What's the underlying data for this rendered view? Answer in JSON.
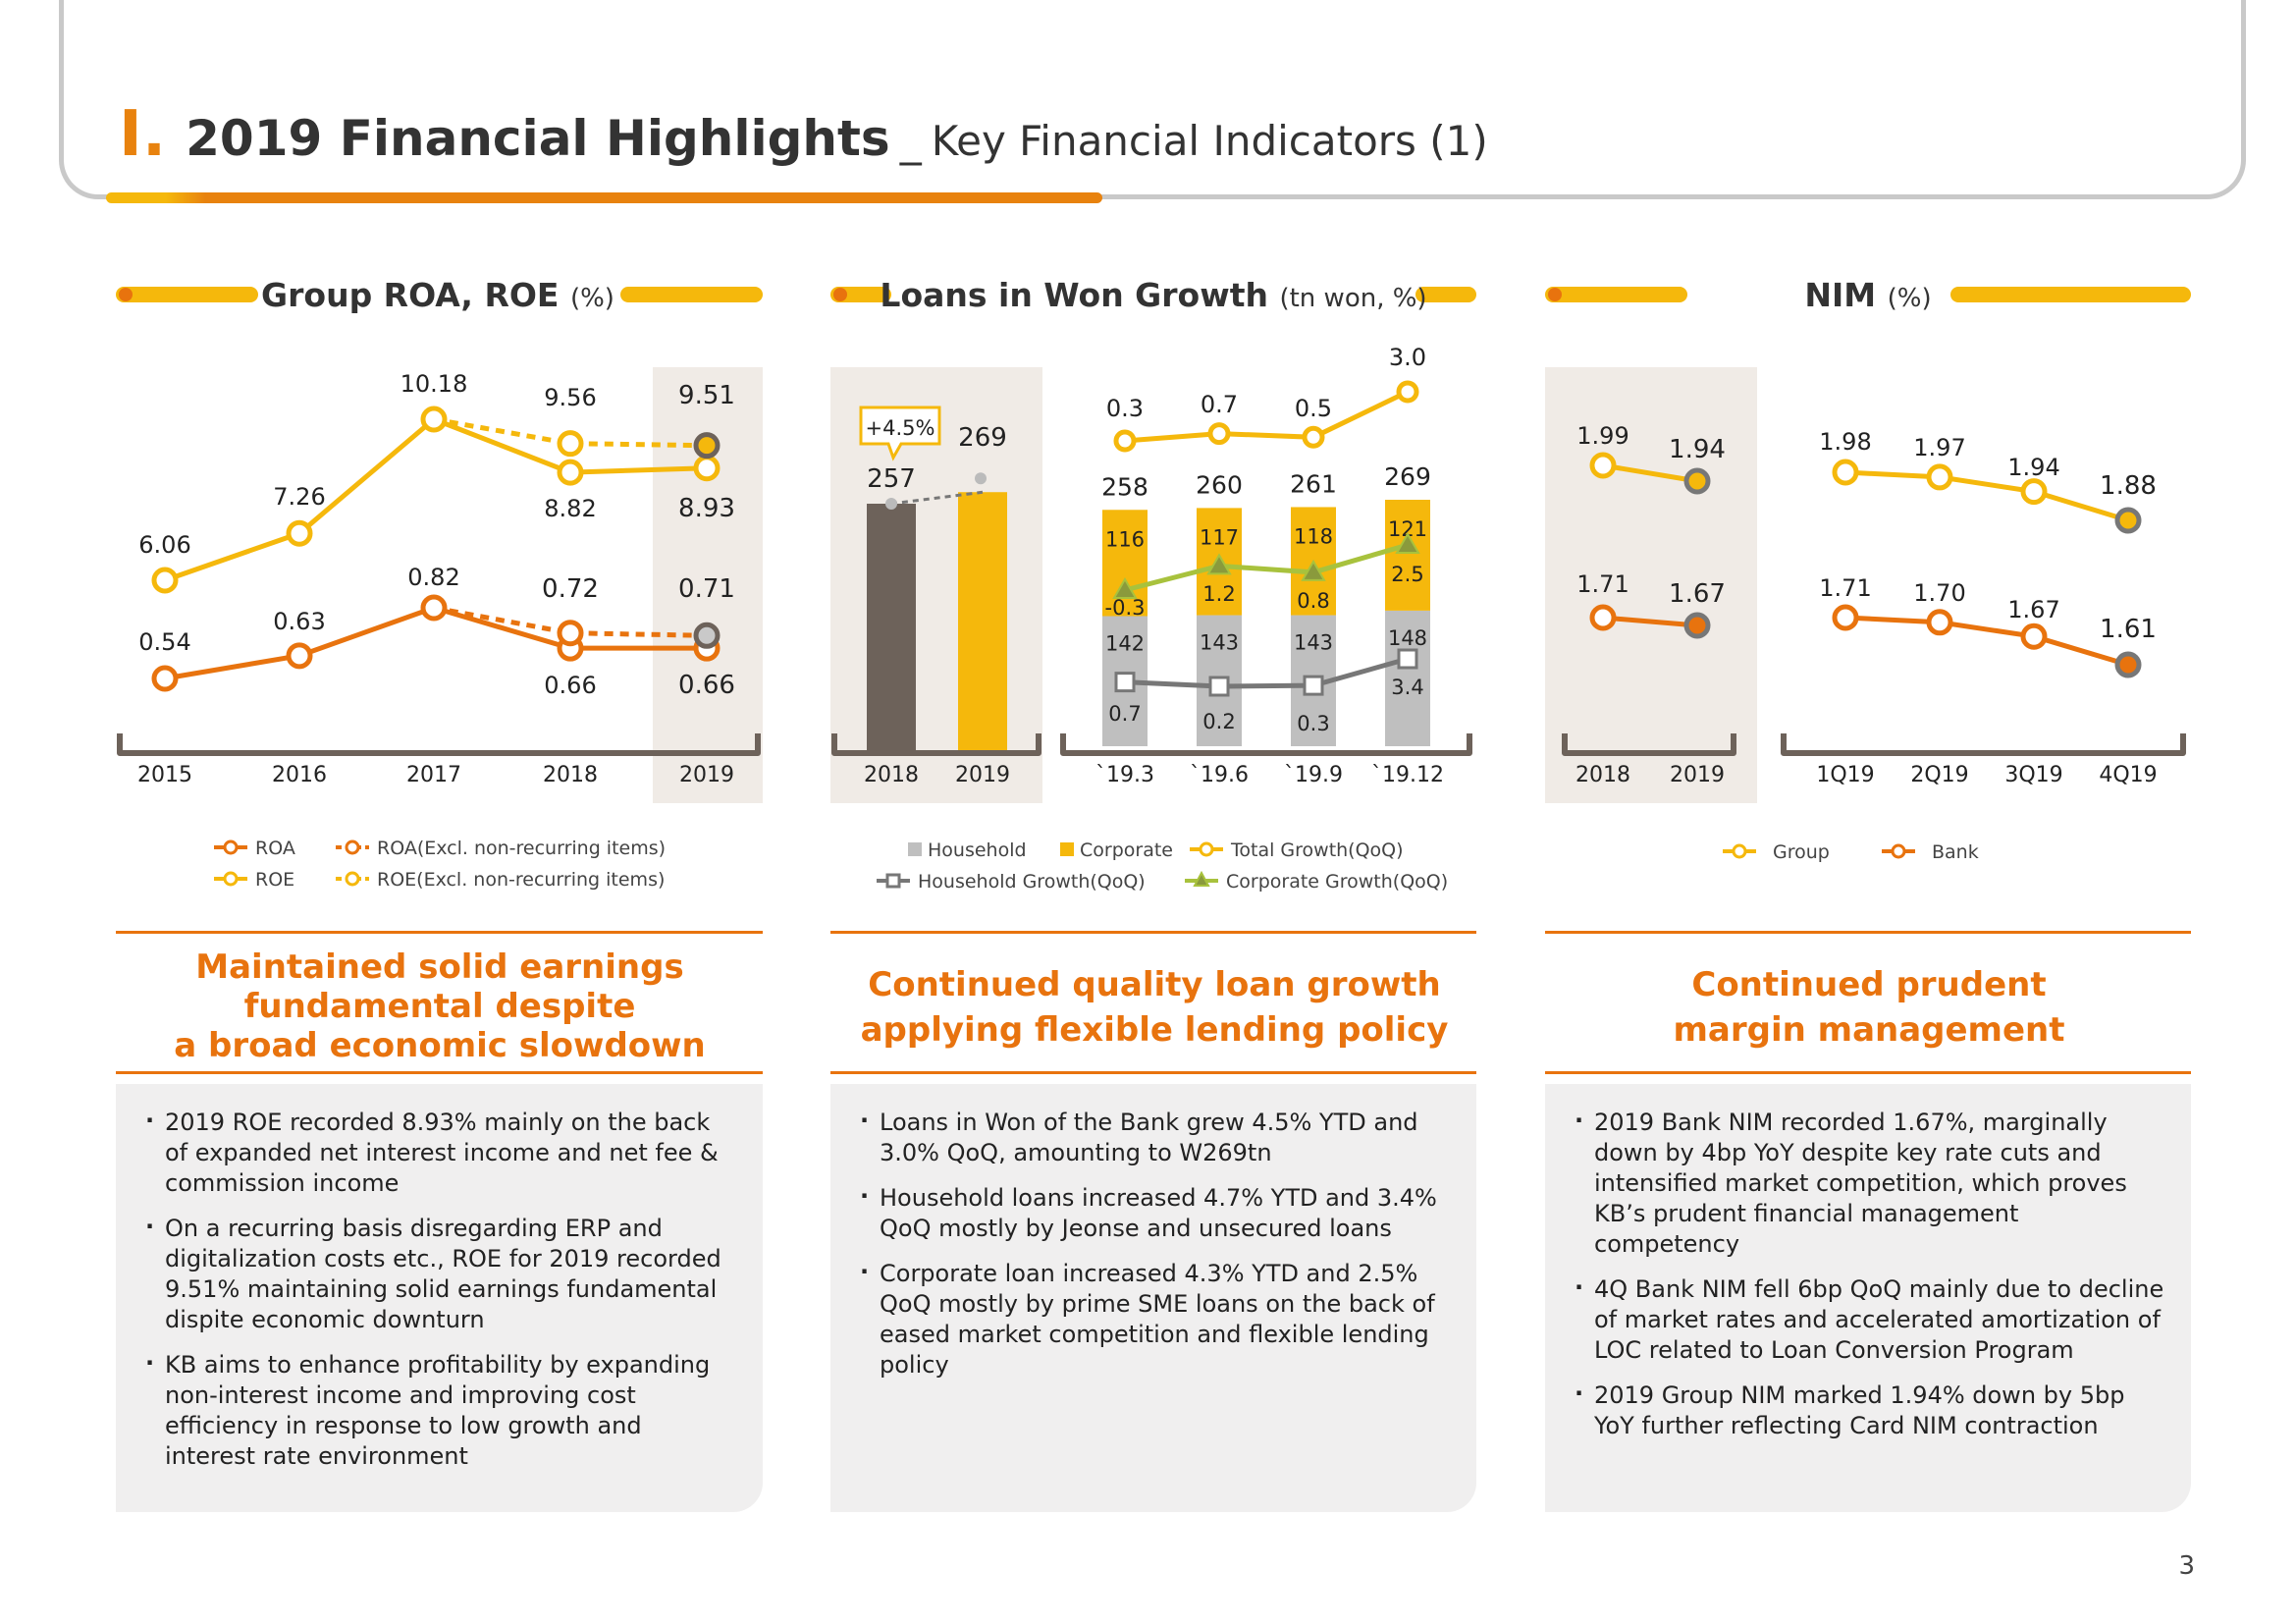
{
  "header": {
    "roman": "I.",
    "title": "2019 Financial Highlights",
    "separator": "_",
    "subtitle": "Key Financial Indicators (1)"
  },
  "page_number": "3",
  "colors": {
    "orange": "#e8730e",
    "yellow": "#f5b80c",
    "gray": "#bfbfbf",
    "brown": "#6d625a",
    "shade": "#f0ebe6",
    "green": "#a8c23d"
  },
  "chart_data": [
    {
      "type": "line",
      "title": "Group ROA, ROE",
      "unit": "(%)",
      "categories": [
        "2015",
        "2016",
        "2017",
        "2018",
        "2019"
      ],
      "series": [
        {
          "name": "ROE",
          "values": [
            6.06,
            7.26,
            10.18,
            8.82,
            8.93
          ]
        },
        {
          "name": "ROE(Excl. non-recurring items)",
          "x": [
            "2017",
            "2018",
            "2019"
          ],
          "values": [
            10.18,
            9.56,
            9.51
          ]
        },
        {
          "name": "ROA",
          "values": [
            0.54,
            0.63,
            0.82,
            0.66,
            0.66
          ]
        },
        {
          "name": "ROA(Excl. non-recurring items)",
          "x": [
            "2017",
            "2018",
            "2019"
          ],
          "values": [
            0.82,
            0.72,
            0.71
          ]
        }
      ],
      "legend": [
        "ROA",
        "ROA(Excl. non-recurring items)",
        "ROE",
        "ROE(Excl. non-recurring items)"
      ]
    },
    {
      "type": "bar",
      "title": "Loans in Won Growth",
      "unit": "(tn won, %)",
      "annual": {
        "categories": [
          "2018",
          "2019"
        ],
        "values": [
          257,
          269
        ],
        "growth_label": "+4.5%"
      },
      "quarterly": {
        "categories": [
          "`19.3",
          "`19.6",
          "`19.9",
          "`19.12"
        ],
        "totals": [
          258,
          260,
          261,
          269
        ],
        "series": [
          {
            "name": "Household",
            "values": [
              142,
              143,
              143,
              148
            ]
          },
          {
            "name": "Corporate",
            "values": [
              116,
              117,
              118,
              121
            ]
          },
          {
            "name": "Total Growth(QoQ)",
            "values": [
              0.3,
              0.7,
              0.5,
              3.0
            ],
            "labels": [
              "0.3",
              "0.7",
              "0.5",
              "3.0"
            ]
          },
          {
            "name": "Household  Growth(QoQ)",
            "values": [
              0.7,
              0.2,
              0.3,
              3.4
            ],
            "labels": [
              "0.7",
              "0.2",
              "0.3",
              "3.4"
            ]
          },
          {
            "name": "Corporate Growth(QoQ)",
            "values": [
              -0.3,
              1.2,
              0.8,
              2.5
            ],
            "labels": [
              "-0.3",
              "1.2",
              "0.8",
              "2.5"
            ]
          }
        ]
      },
      "legend": [
        "Household",
        "Corporate",
        "Total Growth(QoQ)",
        "Household  Growth(QoQ)",
        "Corporate Growth(QoQ)"
      ]
    },
    {
      "type": "line",
      "title": "NIM",
      "unit": "(%)",
      "annual": {
        "categories": [
          "2018",
          "2019"
        ],
        "series": [
          {
            "name": "Group",
            "values": [
              1.99,
              1.94
            ]
          },
          {
            "name": "Bank",
            "values": [
              1.71,
              1.67
            ]
          }
        ]
      },
      "quarterly": {
        "categories": [
          "1Q19",
          "2Q19",
          "3Q19",
          "4Q19"
        ],
        "series": [
          {
            "name": "Group",
            "values": [
              1.98,
              1.97,
              1.94,
              1.88
            ],
            "labels": [
              "1.98",
              "1.97",
              "1.94",
              "1.88"
            ]
          },
          {
            "name": "Bank",
            "values": [
              1.71,
              1.7,
              1.67,
              1.61
            ],
            "labels": [
              "1.71",
              "1.70",
              "1.67",
              "1.61"
            ]
          }
        ]
      },
      "legend": [
        "Group",
        "Bank"
      ]
    }
  ],
  "labels": {
    "roa": {
      "roe": [
        "6.06",
        "7.26",
        "10.18",
        "8.82",
        "8.93"
      ],
      "roe_excl": [
        "9.56",
        "9.51"
      ],
      "roa": [
        "0.54",
        "0.63",
        "0.82",
        "0.66",
        "0.66"
      ],
      "roa_excl": [
        "0.72",
        "0.71"
      ]
    },
    "loans_annual": [
      "257",
      "269"
    ],
    "loans_q_household": [
      "142",
      "143",
      "143",
      "148"
    ],
    "loans_q_corporate": [
      "116",
      "117",
      "118",
      "121"
    ],
    "loans_q_totals": [
      "258",
      "260",
      "261",
      "269"
    ],
    "nim_annual_group": [
      "1.99",
      "1.94"
    ],
    "nim_annual_bank": [
      "1.71",
      "1.67"
    ]
  },
  "summaries": [
    {
      "title": [
        "Maintained solid earnings",
        "fundamental despite",
        "a broad economic slowdown"
      ]
    },
    {
      "title": [
        "Continued quality loan growth",
        "applying flexible lending policy"
      ]
    },
    {
      "title": [
        "Continued prudent",
        "margin management"
      ]
    }
  ],
  "bullets": {
    "roa": [
      "2019 ROE recorded 8.93% mainly on the back of expanded net interest income and net fee & commission income",
      "On a recurring basis disregarding ERP and digitalization costs etc., ROE for 2019 recorded 9.51% maintaining solid earnings fundamental dispite economic downturn",
      "KB aims to enhance profitability by expanding non-interest income and improving cost efficiency in response to low growth and interest rate environment"
    ],
    "loans": [
      "Loans in Won of the Bank grew 4.5% YTD and 3.0% QoQ, amounting to W269tn",
      "Household loans increased 4.7% YTD and 3.4% QoQ mostly by Jeonse and unsecured loans",
      "Corporate loan increased 4.3% YTD and 2.5% QoQ mostly by prime SME loans on the back of eased market competition and flexible lending policy"
    ],
    "nim": [
      "2019 Bank NIM recorded 1.67%, marginally down by 4bp YoY despite key rate cuts and intensified market competition, which proves KB’s prudent financial management competency",
      "4Q Bank NIM fell 6bp QoQ mainly due to decline of  market rates and accelerated amortization of LOC related to Loan Conversion Program",
      "2019 Group NIM marked 1.94% down by 5bp YoY further reflecting Card NIM contraction"
    ]
  }
}
